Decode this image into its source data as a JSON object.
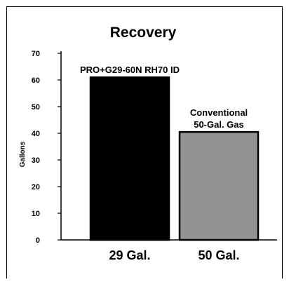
{
  "chart_data": {
    "type": "bar",
    "title": "Recovery",
    "xlabel": "",
    "ylabel": "Gallons",
    "ylim": [
      0,
      70
    ],
    "yticks": [
      0,
      10,
      20,
      30,
      40,
      50,
      60,
      70
    ],
    "categories": [
      "29 Gal.",
      "50 Gal."
    ],
    "series": [
      {
        "values": [
          61,
          40.5
        ],
        "colors": [
          "#000000",
          "#939393"
        ],
        "labels": [
          [
            "PRO+G29-60N RH70 ID"
          ],
          [
            "Conventional",
            "50-Gal. Gas"
          ]
        ]
      }
    ],
    "grid": false,
    "legend": "none"
  }
}
